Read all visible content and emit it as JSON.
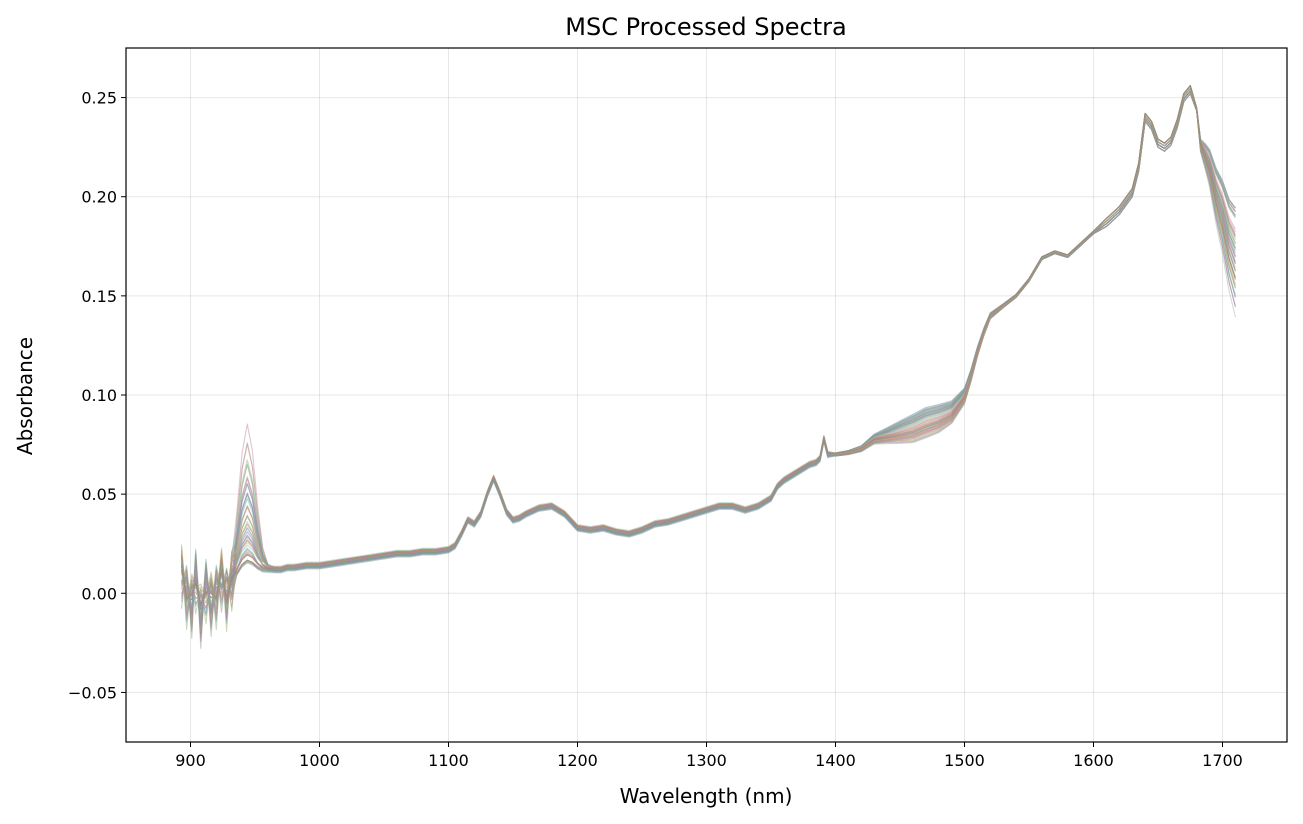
{
  "chart_data": {
    "type": "line",
    "title": "MSC Processed Spectra",
    "xlabel": "Wavelength (nm)",
    "ylabel": "Absorbance",
    "xlim": [
      850,
      1750
    ],
    "ylim": [
      -0.075,
      0.275
    ],
    "xticks": [
      900,
      1000,
      1100,
      1200,
      1300,
      1400,
      1500,
      1600,
      1700
    ],
    "xtick_labels": [
      "900",
      "1000",
      "1100",
      "1200",
      "1300",
      "1400",
      "1500",
      "1600",
      "1700"
    ],
    "yticks": [
      -0.05,
      0.0,
      0.05,
      0.1,
      0.15,
      0.2,
      0.25
    ],
    "ytick_labels": [
      "−0.05",
      "0.00",
      "0.05",
      "0.10",
      "0.15",
      "0.20",
      "0.25"
    ],
    "grid": true,
    "legend": "none",
    "series_colors": [
      "#c27b9a",
      "#7f9a7a",
      "#a3865f",
      "#8a8fb5",
      "#6fa8a0",
      "#d19c9c",
      "#9db88e",
      "#b58e6a",
      "#7a9fbf",
      "#c0a06e",
      "#8fc2a7",
      "#a57fa8"
    ],
    "x": [
      893,
      897,
      901,
      904,
      908,
      912,
      916,
      920,
      924,
      928,
      932,
      936,
      940,
      944,
      948,
      952,
      956,
      960,
      965,
      970,
      975,
      980,
      990,
      1000,
      1010,
      1020,
      1030,
      1040,
      1050,
      1060,
      1070,
      1080,
      1090,
      1100,
      1105,
      1110,
      1115,
      1120,
      1125,
      1130,
      1135,
      1140,
      1145,
      1150,
      1155,
      1160,
      1170,
      1180,
      1190,
      1200,
      1210,
      1220,
      1230,
      1240,
      1250,
      1260,
      1270,
      1280,
      1290,
      1300,
      1310,
      1320,
      1330,
      1340,
      1350,
      1355,
      1360,
      1370,
      1380,
      1385,
      1388,
      1391,
      1394,
      1400,
      1410,
      1420,
      1430,
      1440,
      1450,
      1460,
      1470,
      1480,
      1490,
      1500,
      1505,
      1510,
      1515,
      1520,
      1530,
      1540,
      1550,
      1560,
      1570,
      1580,
      1590,
      1600,
      1610,
      1620,
      1630,
      1635,
      1640,
      1645,
      1650,
      1655,
      1660,
      1665,
      1670,
      1675,
      1680,
      1683,
      1687,
      1690,
      1695,
      1700,
      1705,
      1710
    ],
    "base_profile": [
      0.01,
      0.002,
      -0.005,
      0.01,
      -0.01,
      0.005,
      -0.004,
      0.002,
      0.008,
      0.0,
      0.004,
      0.01,
      0.014,
      0.016,
      0.015,
      0.013,
      0.012,
      0.012,
      0.012,
      0.012,
      0.013,
      0.013,
      0.014,
      0.014,
      0.015,
      0.016,
      0.017,
      0.018,
      0.019,
      0.02,
      0.02,
      0.021,
      0.021,
      0.022,
      0.024,
      0.03,
      0.037,
      0.035,
      0.04,
      0.05,
      0.058,
      0.05,
      0.041,
      0.037,
      0.038,
      0.04,
      0.043,
      0.044,
      0.04,
      0.033,
      0.032,
      0.033,
      0.031,
      0.03,
      0.032,
      0.035,
      0.036,
      0.038,
      0.04,
      0.042,
      0.044,
      0.044,
      0.042,
      0.044,
      0.048,
      0.054,
      0.057,
      0.061,
      0.065,
      0.066,
      0.068,
      0.078,
      0.07,
      0.07,
      0.071,
      0.073,
      0.078,
      0.08,
      0.082,
      0.084,
      0.087,
      0.089,
      0.092,
      0.1,
      0.11,
      0.122,
      0.132,
      0.14,
      0.145,
      0.15,
      0.158,
      0.169,
      0.172,
      0.17,
      0.176,
      0.182,
      0.187,
      0.193,
      0.202,
      0.215,
      0.24,
      0.236,
      0.227,
      0.225,
      0.228,
      0.237,
      0.25,
      0.254,
      0.244,
      0.228,
      0.225,
      0.222,
      0.212,
      0.205,
      0.195,
      0.19
    ],
    "variant_offsets": [
      {
        "peak944": 0.07,
        "lowband": 0.0,
        "knee1500": -0.004,
        "tail1710": 0.005,
        "edge": -0.004
      },
      {
        "peak944": 0.06,
        "lowband": 0.001,
        "knee1500": 0.002,
        "tail1710": 0.0,
        "edge": -0.01
      },
      {
        "peak944": 0.05,
        "lowband": -0.001,
        "knee1500": -0.006,
        "tail1710": -0.01,
        "edge": 0.004
      },
      {
        "peak944": 0.04,
        "lowband": 0.0,
        "knee1500": 0.004,
        "tail1710": -0.02,
        "edge": -0.012
      },
      {
        "peak944": 0.032,
        "lowband": 0.001,
        "knee1500": -0.002,
        "tail1710": -0.03,
        "edge": 0.006
      },
      {
        "peak944": 0.025,
        "lowband": -0.002,
        "knee1500": 0.006,
        "tail1710": -0.04,
        "edge": -0.002
      },
      {
        "peak944": 0.018,
        "lowband": 0.0,
        "knee1500": -0.008,
        "tail1710": -0.05,
        "edge": 0.008
      },
      {
        "peak944": 0.012,
        "lowband": 0.002,
        "knee1500": 0.0,
        "tail1710": 0.003,
        "edge": -0.006
      },
      {
        "peak944": 0.008,
        "lowband": -0.001,
        "knee1500": 0.003,
        "tail1710": -0.015,
        "edge": 0.002
      },
      {
        "peak944": 0.004,
        "lowband": 0.001,
        "knee1500": -0.003,
        "tail1710": -0.035,
        "edge": -0.008
      },
      {
        "peak944": 0.002,
        "lowband": -0.002,
        "knee1500": 0.005,
        "tail1710": -0.025,
        "edge": 0.005
      },
      {
        "peak944": 0.0,
        "lowband": 0.0,
        "knee1500": -0.005,
        "tail1710": -0.045,
        "edge": -0.003
      }
    ]
  }
}
